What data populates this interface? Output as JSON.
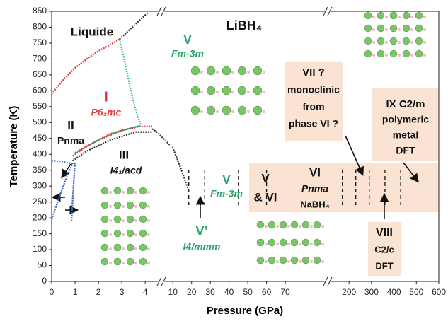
{
  "chart_data": {
    "type": "phase-diagram",
    "title": "LiBH₄",
    "x_label": "Pressure (GPa)",
    "y_label": "Temperature (K)",
    "ylim": [
      0,
      850
    ],
    "yticks": [
      0,
      50,
      100,
      150,
      200,
      250,
      300,
      350,
      400,
      450,
      500,
      550,
      600,
      650,
      700,
      750,
      800,
      850
    ],
    "x_segments": [
      {
        "xlim": [
          0,
          4.6
        ],
        "xticks": [
          0,
          1,
          2,
          3,
          4
        ]
      },
      {
        "xlim": [
          5,
          90
        ],
        "xticks": [
          10,
          20,
          30,
          40,
          50,
          60,
          70
        ]
      },
      {
        "xlim": [
          130,
          600
        ],
        "xticks": [
          200,
          300,
          400,
          500,
          600
        ]
      }
    ],
    "series": [
      {
        "color": "#e03a3a",
        "x": [
          0,
          0.5,
          1,
          1.5,
          2,
          2.5,
          2.9
        ],
        "values": [
          590,
          635,
          672,
          700,
          725,
          745,
          762
        ]
      },
      {
        "color": "#333333",
        "x": [
          2.9,
          3.3,
          3.8,
          4.1
        ],
        "values": [
          762,
          790,
          825,
          845
        ]
      },
      {
        "color": "#2aa56a",
        "x": [
          2.9,
          3.1,
          3.3,
          3.5,
          3.7,
          3.8
        ],
        "values": [
          762,
          700,
          630,
          565,
          515,
          495
        ]
      },
      {
        "color": "#2aa56a",
        "x": [
          0.9,
          1.5,
          2.5,
          3.5,
          3.8
        ],
        "values": [
          395,
          425,
          465,
          485,
          490
        ]
      },
      {
        "color": "#e03a3a",
        "x": [
          1,
          2,
          3,
          3.8,
          4.3
        ],
        "values": [
          405,
          445,
          475,
          488,
          488
        ]
      },
      {
        "color": "#333333",
        "x": [
          0.9,
          1.5,
          2.5,
          3.6,
          4.3
        ],
        "values": [
          380,
          410,
          445,
          470,
          470
        ]
      },
      {
        "color": "#333333",
        "x": [
          4.3,
          4.5,
          10,
          14,
          17,
          18.5
        ],
        "values": [
          480,
          470,
          420,
          360,
          310,
          285
        ]
      },
      {
        "color": "#3a6fc4",
        "x": [
          0,
          0.3,
          0.6,
          0.8,
          0.9
        ],
        "values": [
          195,
          260,
          320,
          355,
          372
        ]
      },
      {
        "color": "#3a6fc4",
        "x": [
          0.85,
          0.9,
          0.95,
          1
        ],
        "values": [
          190,
          260,
          320,
          375
        ]
      },
      {
        "color": "#3a6fc4",
        "x": [
          0,
          0.4,
          0.8,
          1
        ],
        "values": [
          380,
          378,
          372,
          365
        ]
      }
    ],
    "dashed_boundaries_x": [
      18.5,
      27,
      45,
      60,
      170,
      230,
      290,
      360,
      430
    ],
    "labels": [
      {
        "text": "Liquide",
        "color": "#111111"
      },
      {
        "text": "V",
        "color": "#2aa56a"
      },
      {
        "text": "Fm-3m",
        "color": "#2aa56a"
      },
      {
        "text": "LiBH₄",
        "color": "#111111"
      },
      {
        "text": "I",
        "color": "#e03a3a"
      },
      {
        "text": "P6₃mc",
        "color": "#e03a3a"
      },
      {
        "text": "II",
        "color": "#111111"
      },
      {
        "text": "Pnma",
        "color": "#111111"
      },
      {
        "text": "III",
        "color": "#111111"
      },
      {
        "text": "I4₁/acd",
        "color": "#111111"
      },
      {
        "text": "V",
        "color": "#2aa56a"
      },
      {
        "text": "Fm-3m",
        "color": "#2aa56a"
      },
      {
        "text": "V’",
        "color": "#2aa56a"
      },
      {
        "text": "I4/mmm",
        "color": "#2aa56a"
      },
      {
        "text": "V",
        "color": "#111111"
      },
      {
        "text": "& VI",
        "color": "#111111"
      },
      {
        "text": "VI",
        "color": "#111111"
      },
      {
        "text": "Pnma",
        "color": "#111111"
      },
      {
        "text": "NaBH₄",
        "color": "#111111"
      },
      {
        "text": "VII ?",
        "color": "#111111"
      },
      {
        "text": "monoclinic",
        "color": "#111111"
      },
      {
        "text": "from",
        "color": "#111111"
      },
      {
        "text": "phase VI ?",
        "color": "#111111"
      },
      {
        "text": "IX C2/m",
        "color": "#111111"
      },
      {
        "text": "polymeric",
        "color": "#111111"
      },
      {
        "text": "metal",
        "color": "#111111"
      },
      {
        "text": "DFT",
        "color": "#111111"
      },
      {
        "text": "VIII",
        "color": "#111111"
      },
      {
        "text": "C2/c",
        "color": "#111111"
      },
      {
        "text": "DFT",
        "color": "#111111"
      }
    ]
  }
}
